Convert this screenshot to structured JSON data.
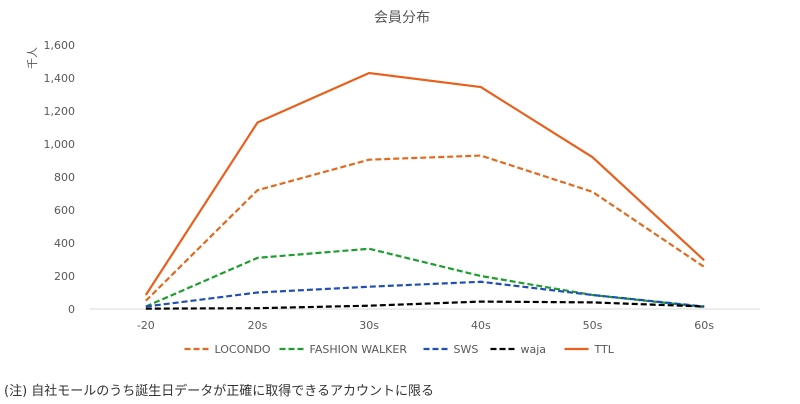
{
  "chart_data": {
    "type": "line",
    "title": "会員分布",
    "ylabel": "千人",
    "xlabel": "",
    "categories": [
      "-20",
      "20s",
      "30s",
      "40s",
      "50s",
      "60s"
    ],
    "yticks": [
      "0",
      "200",
      "400",
      "600",
      "800",
      "1,000",
      "1,200",
      "1,400",
      "1,600"
    ],
    "ylim": [
      0,
      1600
    ],
    "grid": false,
    "legend_position": "bottom",
    "series": [
      {
        "name": "LOCONDO",
        "values": [
          50,
          720,
          905,
          930,
          710,
          255
        ],
        "color": "#E06A1E",
        "style": "dashed"
      },
      {
        "name": "FASHION WALKER",
        "values": [
          15,
          310,
          365,
          200,
          85,
          12
        ],
        "color": "#1E9E2E",
        "style": "dashed"
      },
      {
        "name": "SWS",
        "values": [
          15,
          100,
          135,
          165,
          85,
          15
        ],
        "color": "#1F4FB5",
        "style": "dashed"
      },
      {
        "name": "waja",
        "values": [
          2,
          5,
          20,
          45,
          40,
          15
        ],
        "color": "#000000",
        "style": "dashed"
      },
      {
        "name": "TTL",
        "values": [
          85,
          1130,
          1430,
          1345,
          920,
          295
        ],
        "color": "#E8601C",
        "style": "solid"
      }
    ]
  },
  "footnote": "(注) 自社モールのうち誕生日データが正確に取得できるアカウントに限る"
}
